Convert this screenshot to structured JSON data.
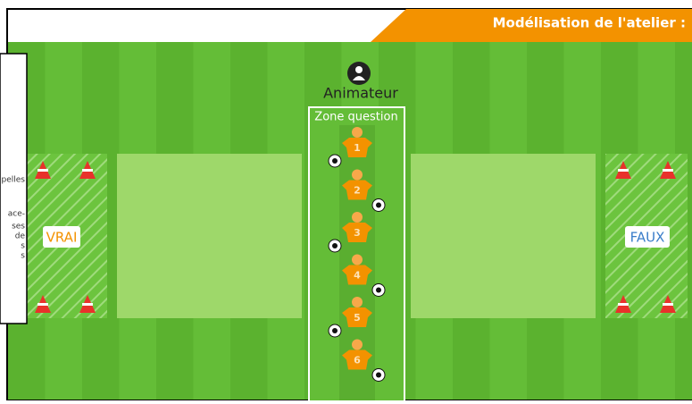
{
  "header": {
    "title": "Modélisation de l'atelier :"
  },
  "field": {
    "animator": "Animateur",
    "zone": "Zone question",
    "left_zone": "VRAI",
    "right_zone": "FAUX"
  },
  "players": [
    {
      "label": "1"
    },
    {
      "label": "2"
    },
    {
      "label": "3"
    },
    {
      "label": "4"
    },
    {
      "label": "5"
    },
    {
      "label": "6"
    }
  ],
  "side_note": {
    "lines": [
      "pelles",
      "ace-",
      "ses",
      "de",
      "s",
      "s"
    ]
  }
}
